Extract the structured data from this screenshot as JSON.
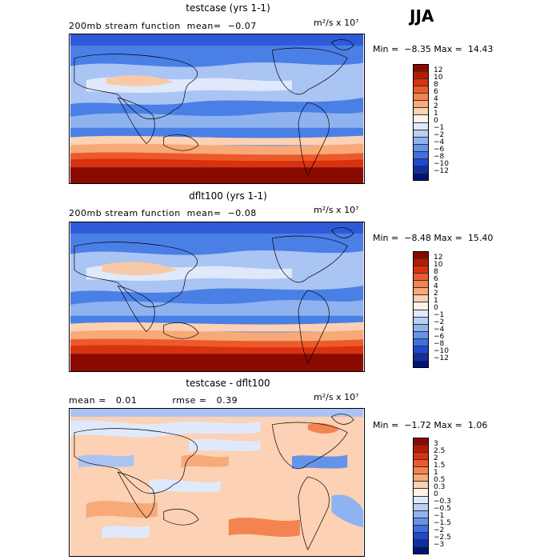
{
  "season": "JJA",
  "panels": [
    {
      "title": "testcase (yrs 1-1)",
      "subtitle": "200mb stream function  mean=  −0.07",
      "units": "m²/s x 10⁷",
      "minmax": "Min =  −8.35 Max =  14.43",
      "colorbar_labels": [
        "12",
        "10",
        "8",
        "6",
        "4",
        "2",
        "1",
        "0",
        "−1",
        "−2",
        "−4",
        "−6",
        "−8",
        "−10",
        "−12"
      ],
      "colorbar_colors": [
        "#8b0a00",
        "#b81a00",
        "#d9320e",
        "#ec5a2c",
        "#f4844f",
        "#f8a978",
        "#fcd1b4",
        "#fff2e6",
        "#dfe9fb",
        "#b8cff6",
        "#8eb3ef",
        "#6693e8",
        "#3f6fe0",
        "#1f48d0",
        "#0f2fa0",
        "#001478"
      ]
    },
    {
      "title": "dflt100 (yrs 1-1)",
      "subtitle": "200mb stream function  mean=  −0.08",
      "units": "m²/s x 10⁷",
      "minmax": "Min =  −8.48 Max =  15.40",
      "colorbar_labels": [
        "12",
        "10",
        "8",
        "6",
        "4",
        "2",
        "1",
        "0",
        "−1",
        "−2",
        "−4",
        "−6",
        "−8",
        "−10",
        "−12"
      ],
      "colorbar_colors": [
        "#8b0a00",
        "#b81a00",
        "#d9320e",
        "#ec5a2c",
        "#f4844f",
        "#f8a978",
        "#fcd1b4",
        "#fff2e6",
        "#dfe9fb",
        "#b8cff6",
        "#8eb3ef",
        "#6693e8",
        "#3f6fe0",
        "#1f48d0",
        "#0f2fa0",
        "#001478"
      ]
    },
    {
      "title": "testcase - dflt100",
      "subtitle": "mean =   0.01           rmse =   0.39",
      "units": "m²/s x 10⁷",
      "minmax": "Min =  −1.72 Max =  1.06",
      "colorbar_labels": [
        "3",
        "2.5",
        "2",
        "1.5",
        "1",
        "0.5",
        "0.3",
        "0",
        "−0.3",
        "−0.5",
        "−1",
        "−1.5",
        "−2",
        "−2.5",
        "−3"
      ],
      "colorbar_colors": [
        "#8b0a00",
        "#b81a00",
        "#d9320e",
        "#ec5a2c",
        "#f4844f",
        "#f8a978",
        "#fcd1b4",
        "#fff2e6",
        "#dfe9fb",
        "#b8cff6",
        "#8eb3ef",
        "#6693e8",
        "#3f6fe0",
        "#1f48d0",
        "#0f2fa0",
        "#001478"
      ]
    }
  ]
}
